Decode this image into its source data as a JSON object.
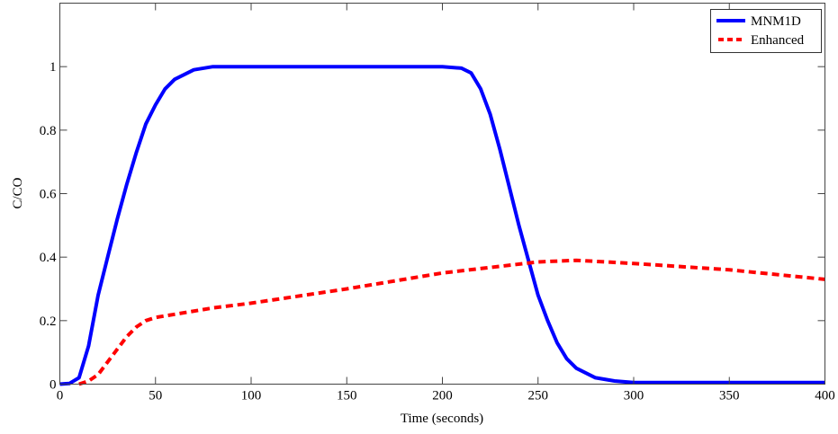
{
  "chart_data": {
    "type": "line",
    "title": "",
    "xlabel": "Time (seconds)",
    "ylabel": "C/CO",
    "xlim": [
      0,
      400
    ],
    "ylim": [
      0,
      1.2
    ],
    "xticks": [
      0,
      50,
      100,
      150,
      200,
      250,
      300,
      350,
      400
    ],
    "xtick_labels": [
      "0",
      "50",
      "100",
      "150",
      "200",
      "250",
      "300",
      "350",
      "400"
    ],
    "yticks": [
      0,
      0.2,
      0.4,
      0.6,
      0.8,
      1
    ],
    "ytick_labels": [
      "0",
      "0.2",
      "0.4",
      "0.6",
      "0.8",
      "1"
    ],
    "grid": false,
    "legend_position": "top-right",
    "series": [
      {
        "name": "MNM1D",
        "color": "#0000ff",
        "style": "solid",
        "x": [
          0,
          5,
          10,
          15,
          20,
          25,
          30,
          35,
          40,
          45,
          50,
          55,
          60,
          70,
          80,
          100,
          150,
          200,
          210,
          215,
          220,
          225,
          230,
          235,
          240,
          245,
          250,
          255,
          260,
          265,
          270,
          280,
          290,
          300,
          350,
          400
        ],
        "y": [
          0,
          0.002,
          0.02,
          0.12,
          0.28,
          0.4,
          0.52,
          0.63,
          0.73,
          0.82,
          0.88,
          0.93,
          0.96,
          0.99,
          1.0,
          1.0,
          1.0,
          1.0,
          0.995,
          0.98,
          0.93,
          0.85,
          0.74,
          0.62,
          0.5,
          0.39,
          0.28,
          0.2,
          0.13,
          0.08,
          0.05,
          0.02,
          0.01,
          0.005,
          0.005,
          0.005
        ]
      },
      {
        "name": "Enhanced",
        "color": "#ff0000",
        "style": "dashed",
        "x": [
          10,
          15,
          20,
          25,
          30,
          35,
          40,
          45,
          50,
          60,
          80,
          100,
          150,
          200,
          250,
          270,
          300,
          350,
          400
        ],
        "y": [
          0,
          0.01,
          0.03,
          0.07,
          0.11,
          0.15,
          0.18,
          0.2,
          0.21,
          0.22,
          0.24,
          0.255,
          0.3,
          0.35,
          0.385,
          0.39,
          0.38,
          0.36,
          0.33
        ]
      }
    ]
  }
}
